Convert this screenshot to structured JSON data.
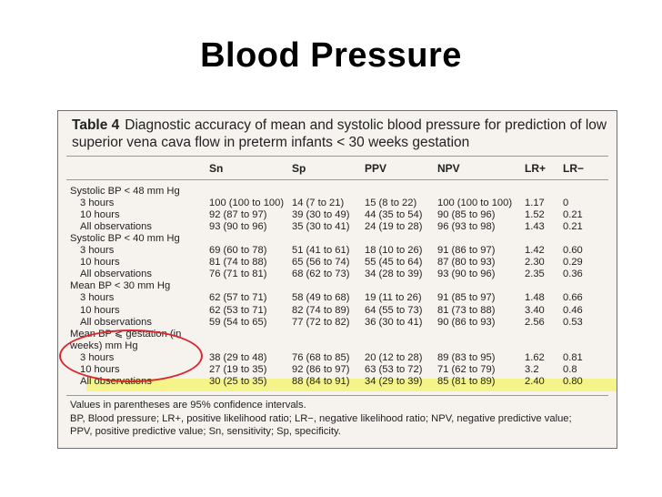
{
  "slide": {
    "title": "Blood Pressure"
  },
  "table": {
    "label": "Table 4",
    "caption_line1": "Diagnostic accuracy of mean and systolic blood pressure for prediction of low",
    "caption_line2": "superior vena cava flow in preterm infants < 30 weeks gestation",
    "headers": [
      "Sn",
      "Sp",
      "PPV",
      "NPV",
      "LR+",
      "LR−"
    ],
    "rows": [
      {
        "label": "Systolic BP < 48 mm Hg",
        "sub": false,
        "cells": [
          "",
          "",
          "",
          "",
          "",
          ""
        ]
      },
      {
        "label": "3 hours",
        "sub": true,
        "cells": [
          "100 (100 to 100)",
          "14 (7 to 21)",
          "15 (8 to 22)",
          "100 (100 to 100)",
          "1.17",
          "0"
        ]
      },
      {
        "label": "10 hours",
        "sub": true,
        "cells": [
          "92 (87 to 97)",
          "39 (30 to 49)",
          "44 (35 to 54)",
          "90 (85 to 96)",
          "1.52",
          "0.21"
        ]
      },
      {
        "label": "All observations",
        "sub": true,
        "cells": [
          "93 (90 to 96)",
          "35 (30 to 41)",
          "24 (19 to 28)",
          "96 (93 to 98)",
          "1.43",
          "0.21"
        ]
      },
      {
        "label": "Systolic BP < 40 mm Hg",
        "sub": false,
        "cells": [
          "",
          "",
          "",
          "",
          "",
          ""
        ]
      },
      {
        "label": "3 hours",
        "sub": true,
        "cells": [
          "69 (60 to 78)",
          "51 (41 to 61)",
          "18 (10 to 26)",
          "91 (86 to 97)",
          "1.42",
          "0.60"
        ]
      },
      {
        "label": "10 hours",
        "sub": true,
        "cells": [
          "81 (74 to 88)",
          "65 (56 to 74)",
          "55 (45 to 64)",
          "87 (80 to 93)",
          "2.30",
          "0.29"
        ]
      },
      {
        "label": "All observations",
        "sub": true,
        "cells": [
          "76 (71 to 81)",
          "68 (62 to 73)",
          "34 (28 to 39)",
          "93 (90 to 96)",
          "2.35",
          "0.36"
        ]
      },
      {
        "label": "Mean BP < 30 mm Hg",
        "sub": false,
        "cells": [
          "",
          "",
          "",
          "",
          "",
          ""
        ]
      },
      {
        "label": "3 hours",
        "sub": true,
        "cells": [
          "62 (57 to 71)",
          "58 (49 to 68)",
          "19 (11 to 26)",
          "91 (85 to 97)",
          "1.48",
          "0.66"
        ]
      },
      {
        "label": "10 hours",
        "sub": true,
        "cells": [
          "62 (53 to 71)",
          "82 (74 to 89)",
          "64 (55 to 73)",
          "81 (73 to 88)",
          "3.40",
          "0.46"
        ]
      },
      {
        "label": "All observations",
        "sub": true,
        "cells": [
          "59 (54 to 65)",
          "77 (72 to 82)",
          "36 (30 to 41)",
          "90 (86 to 93)",
          "2.56",
          "0.53"
        ]
      },
      {
        "label": "Mean BP ⩽ gestation (in",
        "sub": false,
        "cells": [
          "",
          "",
          "",
          "",
          "",
          ""
        ]
      },
      {
        "label": "weeks) mm Hg",
        "sub": false,
        "cells": [
          "",
          "",
          "",
          "",
          "",
          ""
        ]
      },
      {
        "label": "3 hours",
        "sub": true,
        "cells": [
          "38 (29 to 48)",
          "76 (68 to 85)",
          "20 (12 to 28)",
          "89 (83 to 95)",
          "1.62",
          "0.81"
        ]
      },
      {
        "label": "10 hours",
        "sub": true,
        "cells": [
          "27 (19 to 35)",
          "92 (86 to 97)",
          "63 (53 to 72)",
          "71 (62 to 79)",
          "3.2",
          "0.8"
        ]
      },
      {
        "label": "All observations",
        "sub": true,
        "cells": [
          "30 (25 to 35)",
          "88 (84 to 91)",
          "34 (29 to 39)",
          "85 (81 to 89)",
          "2.40",
          "0.80"
        ]
      }
    ],
    "footnotes": [
      "Values in parentheses are 95% confidence intervals.",
      "BP, Blood pressure; LR+, positive likelihood ratio; LR−, negative likelihood ratio; NPV, negative predictive value;",
      "PPV, positive predictive value; Sn, sensitivity; Sp, specificity."
    ]
  },
  "annotations": {
    "highlight_color": "#f4f48a",
    "circle_color": "#d9272e"
  }
}
